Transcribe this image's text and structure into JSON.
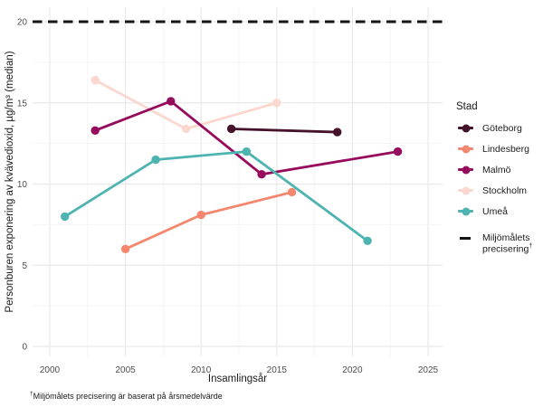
{
  "chart_data": {
    "type": "line",
    "title": "",
    "xlabel": "Insamlingsår",
    "ylabel": "Personburen exponering av kvävedioxid, µg/m³ (median)",
    "x_ticks": [
      2000,
      2005,
      2010,
      2015,
      2020,
      2025
    ],
    "y_ticks": [
      0,
      5,
      10,
      15,
      20
    ],
    "xlim": [
      1999,
      2026
    ],
    "ylim": [
      -0.6,
      20.9
    ],
    "grid": "major and minor, light gray on white",
    "legend_title": "Stad",
    "legend_position": "right",
    "series": [
      {
        "name": "Göteborg",
        "color": "#45112b",
        "points": [
          [
            2012,
            13.4
          ],
          [
            2019,
            13.2
          ]
        ]
      },
      {
        "name": "Lindesberg",
        "color": "#f5876f",
        "points": [
          [
            2005,
            6.0
          ],
          [
            2010,
            8.1
          ],
          [
            2016,
            9.5
          ]
        ]
      },
      {
        "name": "Malmö",
        "color": "#970b5d",
        "points": [
          [
            2003,
            13.3
          ],
          [
            2008,
            15.1
          ],
          [
            2014,
            10.6
          ],
          [
            2023,
            12.0
          ]
        ]
      },
      {
        "name": "Stockholm",
        "color": "#fbd7cf",
        "points": [
          [
            2003,
            16.4
          ],
          [
            2009,
            13.4
          ],
          [
            2015,
            15.0
          ]
        ]
      },
      {
        "name": "Umeå",
        "color": "#4eb4b2",
        "points": [
          [
            2001,
            8.0
          ],
          [
            2007,
            11.5
          ],
          [
            2013,
            12.0
          ],
          [
            2021,
            6.5
          ]
        ]
      }
    ],
    "draw_order": [
      0,
      1,
      3,
      2,
      4
    ],
    "threshold": {
      "value": 20,
      "color": "#141414",
      "style": "dashed",
      "label_line1": "Miljömålets",
      "label_line2": "precisering",
      "dagger": "†"
    }
  },
  "footnote": {
    "dagger": "†",
    "text": "Miljömålets precisering är baserat på årsmedelvärde"
  }
}
